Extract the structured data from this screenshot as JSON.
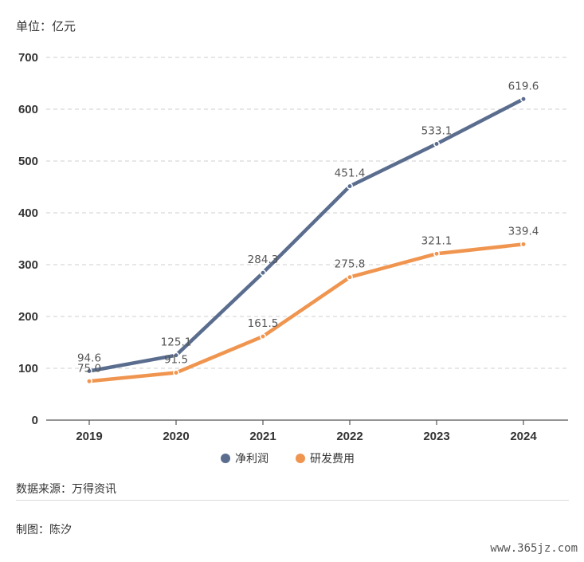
{
  "unit_label": "单位：亿元",
  "source_text": "数据来源：万得资讯",
  "author_text": "制图：陈汐",
  "watermark_text": "www.365jz.com",
  "chart_data": {
    "type": "line",
    "title": "",
    "xlabel": "",
    "ylabel": "单位：亿元",
    "categories": [
      "2019",
      "2020",
      "2021",
      "2022",
      "2023",
      "2024"
    ],
    "ylim": [
      0,
      700
    ],
    "yticks": [
      0,
      100,
      200,
      300,
      400,
      500,
      600,
      700
    ],
    "grid": true,
    "legend_position": "bottom-center",
    "series": [
      {
        "name": "净利润",
        "color": "#5a6d8e",
        "values": [
          94.6,
          125.1,
          284.3,
          451.4,
          533.1,
          619.6
        ],
        "labels": [
          "94.6",
          "125.1",
          "284.3",
          "451.4",
          "533.1",
          "619.6"
        ]
      },
      {
        "name": "研发费用",
        "color": "#f0954f",
        "values": [
          75.0,
          91.5,
          161.5,
          275.8,
          321.1,
          339.4
        ],
        "labels": [
          "75.0",
          "91.5",
          "161.5",
          "275.8",
          "321.1",
          "339.4"
        ]
      }
    ]
  }
}
